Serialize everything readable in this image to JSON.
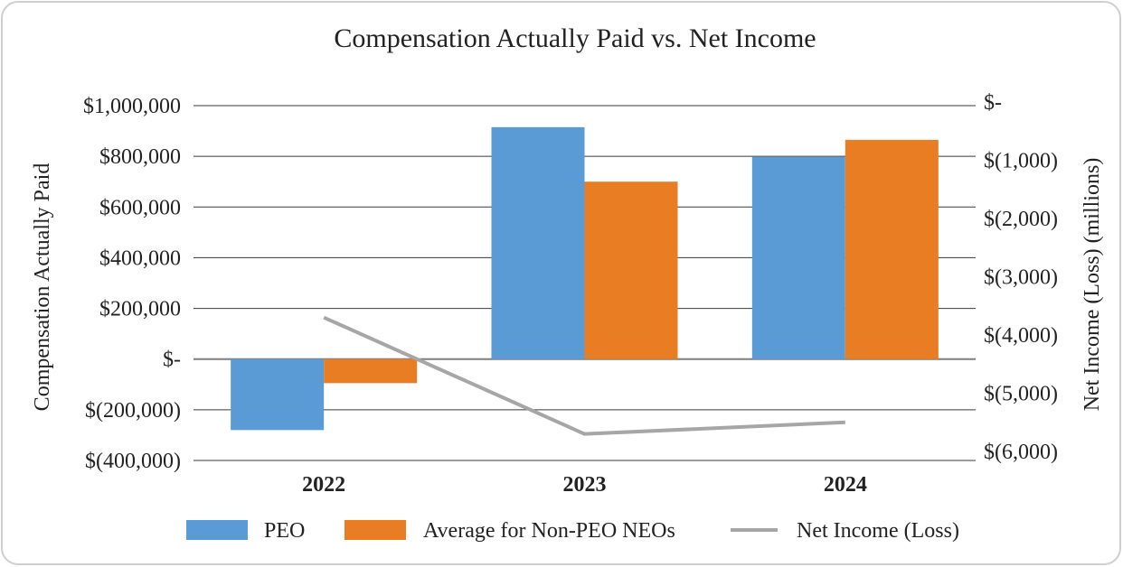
{
  "chart_data": {
    "type": "bar",
    "title": "Compensation Actually Paid vs. Net Income",
    "categories": [
      "2022",
      "2023",
      "2024"
    ],
    "ylabel": "Compensation Actually Paid",
    "y2label": "Net Income (Loss) (millions)",
    "ylim": [
      -400000,
      1000000
    ],
    "y2lim": [
      -6000,
      0
    ],
    "y_ticks": [
      1000000,
      800000,
      600000,
      400000,
      200000,
      0,
      -200000,
      -400000
    ],
    "y_tick_labels": [
      "$1,000,000",
      "$800,000",
      "$600,000",
      "$400,000",
      "$200,000",
      "$-",
      "$(200,000)",
      "$(400,000)"
    ],
    "y2_ticks": [
      0,
      -1000,
      -2000,
      -3000,
      -4000,
      -5000,
      -6000
    ],
    "y2_tick_labels": [
      "$-",
      "$(1,000)",
      "$(2,000)",
      "$(3,000)",
      "$(4,000)",
      "$(5,000)",
      "$(6,000)"
    ],
    "grid": true,
    "legend_position": "bottom",
    "series": [
      {
        "name": "PEO",
        "type": "bar",
        "axis": "left",
        "color": "#5B9BD5",
        "values": [
          -280000,
          915000,
          798000
        ]
      },
      {
        "name": "Average for Non-PEO NEOs",
        "type": "bar",
        "axis": "left",
        "color": "#E87D24",
        "values": [
          -95000,
          700000,
          865000
        ]
      },
      {
        "name": "Net Income (Loss)",
        "type": "line",
        "axis": "right",
        "color": "#A6A6A6",
        "values": [
          -3700,
          -5700,
          -5500
        ]
      }
    ]
  }
}
